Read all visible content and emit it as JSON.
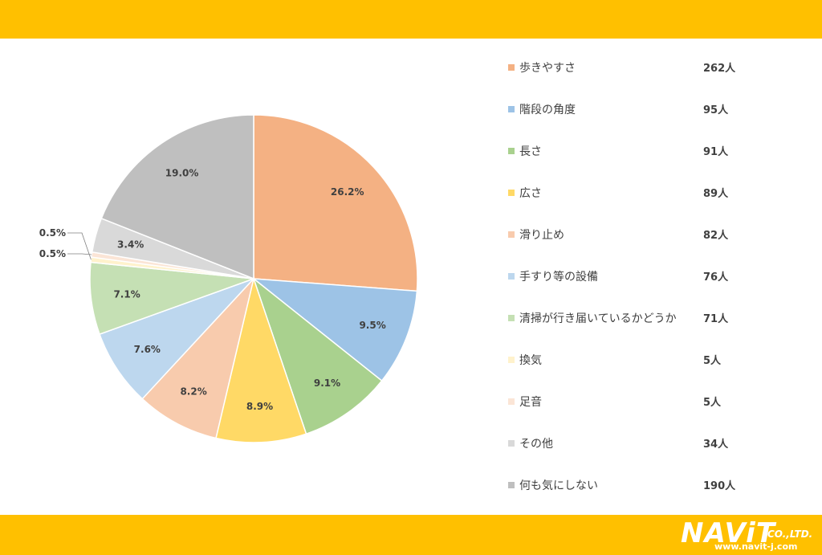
{
  "chart_data": {
    "type": "pie",
    "slices": [
      {
        "label": "歩きやすさ",
        "value": 262,
        "count": "262人",
        "percent": "26.2%",
        "color": "#F4B183"
      },
      {
        "label": "階段の角度",
        "value": 95,
        "count": "95人",
        "percent": "9.5%",
        "color": "#9DC3E6"
      },
      {
        "label": "長さ",
        "value": 91,
        "count": "91人",
        "percent": "9.1%",
        "color": "#A9D18E"
      },
      {
        "label": "広さ",
        "value": 89,
        "count": "89人",
        "percent": "8.9%",
        "color": "#FFD966"
      },
      {
        "label": "滑り止め",
        "value": 82,
        "count": "82人",
        "percent": "8.2%",
        "color": "#F8CBAD"
      },
      {
        "label": "手すり等の設備",
        "value": 76,
        "count": "76人",
        "percent": "7.6%",
        "color": "#BDD7EE"
      },
      {
        "label": "清掃が行き届いているかどうか",
        "value": 71,
        "count": "71人",
        "percent": "7.1%",
        "color": "#C5E0B4"
      },
      {
        "label": "換気",
        "value": 5,
        "count": "5人",
        "percent": "0.5%",
        "color": "#FFF2CC"
      },
      {
        "label": "足音",
        "value": 5,
        "count": "5人",
        "percent": "0.5%",
        "color": "#FBE5D6"
      },
      {
        "label": "その他",
        "value": 34,
        "count": "34人",
        "percent": "3.4%",
        "color": "#D9D9D9"
      },
      {
        "label": "何も気にしない",
        "value": 190,
        "count": "190人",
        "percent": "19.0%",
        "color": "#BFBFBF"
      }
    ],
    "legend_position": "right"
  },
  "branding": {
    "logo_main": "NAViT",
    "logo_suffix": "CO.,LTD.",
    "logo_url": "www.navit-j.com",
    "band_color": "#FFC000"
  }
}
